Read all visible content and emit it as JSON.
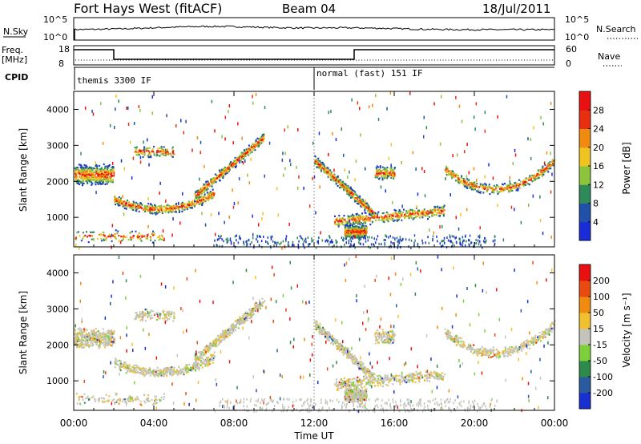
{
  "header": {
    "station": "Fort Hays West (fitACF)",
    "beam": "Beam 04",
    "date": "18/Jul/2011"
  },
  "noise_panel": {
    "left_label": "N.Sky",
    "right_label": "N.Search",
    "left_ticks": [
      "10^5",
      "10^0"
    ],
    "right_ticks": [
      "10^5",
      "10^0"
    ]
  },
  "freq_panel": {
    "left_label_line1": "Freq.",
    "left_label_line2": "[MHz]",
    "right_label": "Nave",
    "left_ticks": [
      "18",
      "8"
    ],
    "right_ticks": [
      "60",
      "0"
    ]
  },
  "cpid_panel": {
    "label": "CPID",
    "segments": [
      {
        "text": "themis 3300 IF",
        "start": 0,
        "end": 12
      },
      {
        "text": "normal (fast) 151 IF",
        "start": 12,
        "end": 24
      }
    ]
  },
  "chart_data": [
    {
      "type": "heatmap",
      "name": "power",
      "ylabel": "Slant Range [km]",
      "yticks": [
        "1000",
        "2000",
        "3000",
        "4000"
      ],
      "colorbar_label": "Power [dB]",
      "colorbar_ticks": [
        "4",
        "8",
        "12",
        "16",
        "20",
        "24",
        "28"
      ],
      "colors": [
        "#1a2bd8",
        "#2050a8",
        "#2f8a5a",
        "#8cc43c",
        "#f0c420",
        "#f08a10",
        "#e83010",
        "#e81010"
      ],
      "xlim": [
        0,
        24
      ],
      "ylim": [
        180,
        4500
      ]
    },
    {
      "type": "heatmap",
      "name": "velocity",
      "ylabel": "Slant Range [km]",
      "yticks": [
        "1000",
        "2000",
        "3000",
        "4000"
      ],
      "colorbar_label": "Velocity [m s⁻¹]",
      "colorbar_ticks": [
        "200",
        "100",
        "50",
        "15",
        "-15",
        "-50",
        "-100",
        "-200"
      ],
      "colors": [
        "#1830d0",
        "#2a5aa0",
        "#2e8a4a",
        "#7ed03a",
        "#c4c4bc",
        "#f0c030",
        "#f08a10",
        "#e84a10",
        "#e81010"
      ],
      "xlim": [
        0,
        24
      ],
      "ylim": [
        180,
        4500
      ]
    }
  ],
  "xaxis": {
    "ticks": [
      "00:00",
      "04:00",
      "08:00",
      "12:00",
      "16:00",
      "20:00",
      "00:00"
    ],
    "label": "Time UT"
  }
}
